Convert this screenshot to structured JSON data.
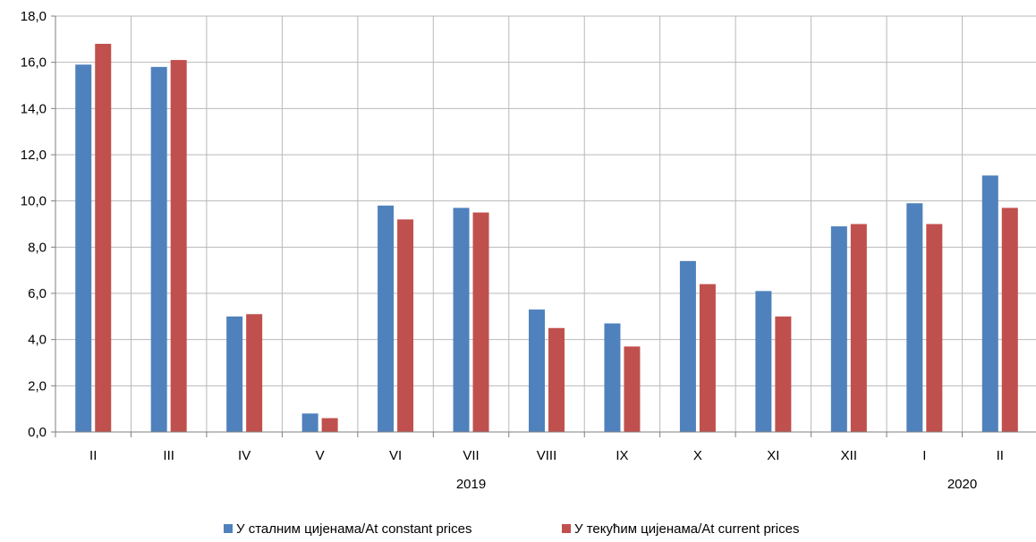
{
  "chart_data": {
    "type": "bar",
    "categories": [
      "II",
      "III",
      "IV",
      "V",
      "VI",
      "VII",
      "VIII",
      "IX",
      "X",
      "XI",
      "XII",
      "I",
      "II"
    ],
    "year_labels": [
      {
        "label": "2019",
        "span": [
          0,
          10
        ]
      },
      {
        "label": "2020",
        "span": [
          11,
          12
        ]
      }
    ],
    "series": [
      {
        "name": "У сталним цијенама/At constant prices",
        "color": "#4f81bd",
        "values": [
          15.9,
          15.8,
          5.0,
          0.8,
          9.8,
          9.7,
          5.3,
          4.7,
          7.4,
          6.1,
          8.9,
          9.9,
          11.1
        ]
      },
      {
        "name": "У текућим цијенама/At current prices",
        "color": "#c0504d",
        "values": [
          16.8,
          16.1,
          5.1,
          0.6,
          9.2,
          9.5,
          4.5,
          3.7,
          6.4,
          5.0,
          9.0,
          9.0,
          9.7
        ]
      }
    ],
    "ylim": [
      0,
      18
    ],
    "yticks": [
      "0,0",
      "2,0",
      "4,0",
      "6,0",
      "8,0",
      "10,0",
      "12,0",
      "14,0",
      "16,0",
      "18,0"
    ],
    "grid": true,
    "legend": "bottom-center",
    "title": "",
    "xlabel": "",
    "ylabel": ""
  }
}
